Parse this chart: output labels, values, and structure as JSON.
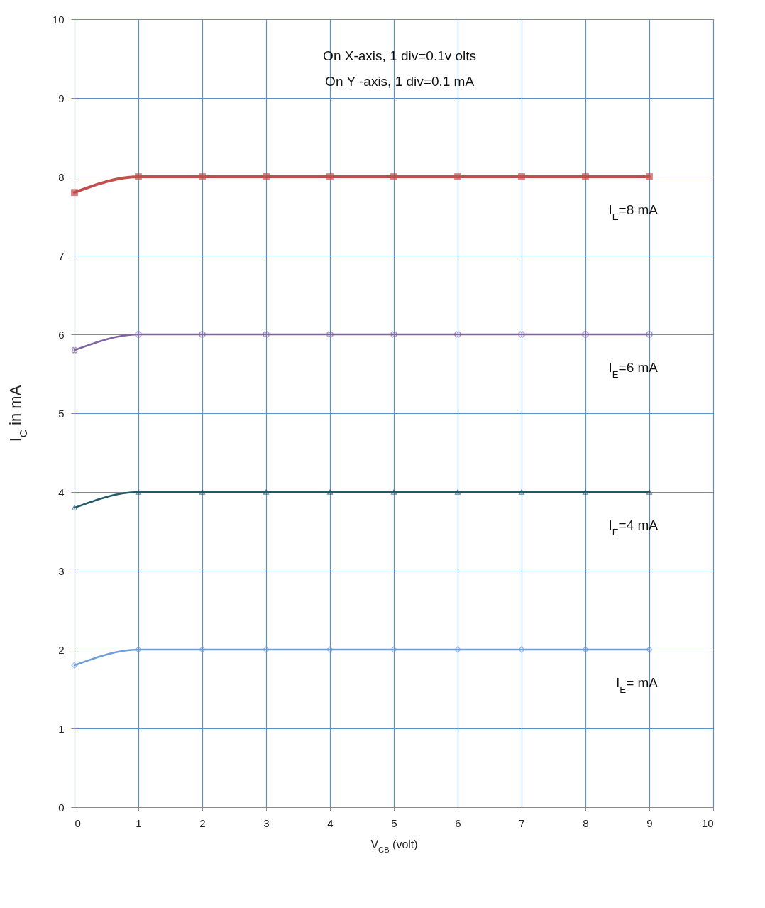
{
  "chart_data": {
    "type": "line",
    "xlabel": "V$_{CB}$  (volt)",
    "ylabel": "I$_{C}$   in  mA",
    "annotations": [
      "On X-axis, 1 div=0.1v olts",
      "On Y -axis, 1 div=0.1 mA"
    ],
    "x": [
      0,
      1,
      2,
      3,
      4,
      5,
      6,
      7,
      8,
      9
    ],
    "series": [
      {
        "name": "I$_{E}$=8 mA",
        "color": "#c0504d",
        "marker": "square",
        "values": [
          7.8,
          8,
          8,
          8,
          8,
          8,
          8,
          8,
          8,
          8
        ]
      },
      {
        "name": "I$_{E}$=6 mA",
        "color": "#8064a2",
        "marker": "cross",
        "values": [
          5.8,
          6,
          6,
          6,
          6,
          6,
          6,
          6,
          6,
          6
        ]
      },
      {
        "name": "I$_{E}$=4 mA",
        "color": "#215968",
        "marker": "triangle",
        "values": [
          3.8,
          4,
          4,
          4,
          4,
          4,
          4,
          4,
          4,
          4
        ]
      },
      {
        "name": "I$_{E}$= mA",
        "color": "#6f9fd8",
        "marker": "diamond",
        "values": [
          1.8,
          2,
          2,
          2,
          2,
          2,
          2,
          2,
          2,
          2
        ]
      }
    ],
    "xlim": [
      0,
      10
    ],
    "xticks": [
      0,
      1,
      2,
      3,
      4,
      5,
      6,
      7,
      8,
      9,
      10
    ],
    "ylim": [
      0,
      10
    ],
    "yticks": [
      0,
      1,
      2,
      3,
      4,
      5,
      6,
      7,
      8,
      9,
      10
    ],
    "grid": true,
    "line_style": "solid"
  }
}
